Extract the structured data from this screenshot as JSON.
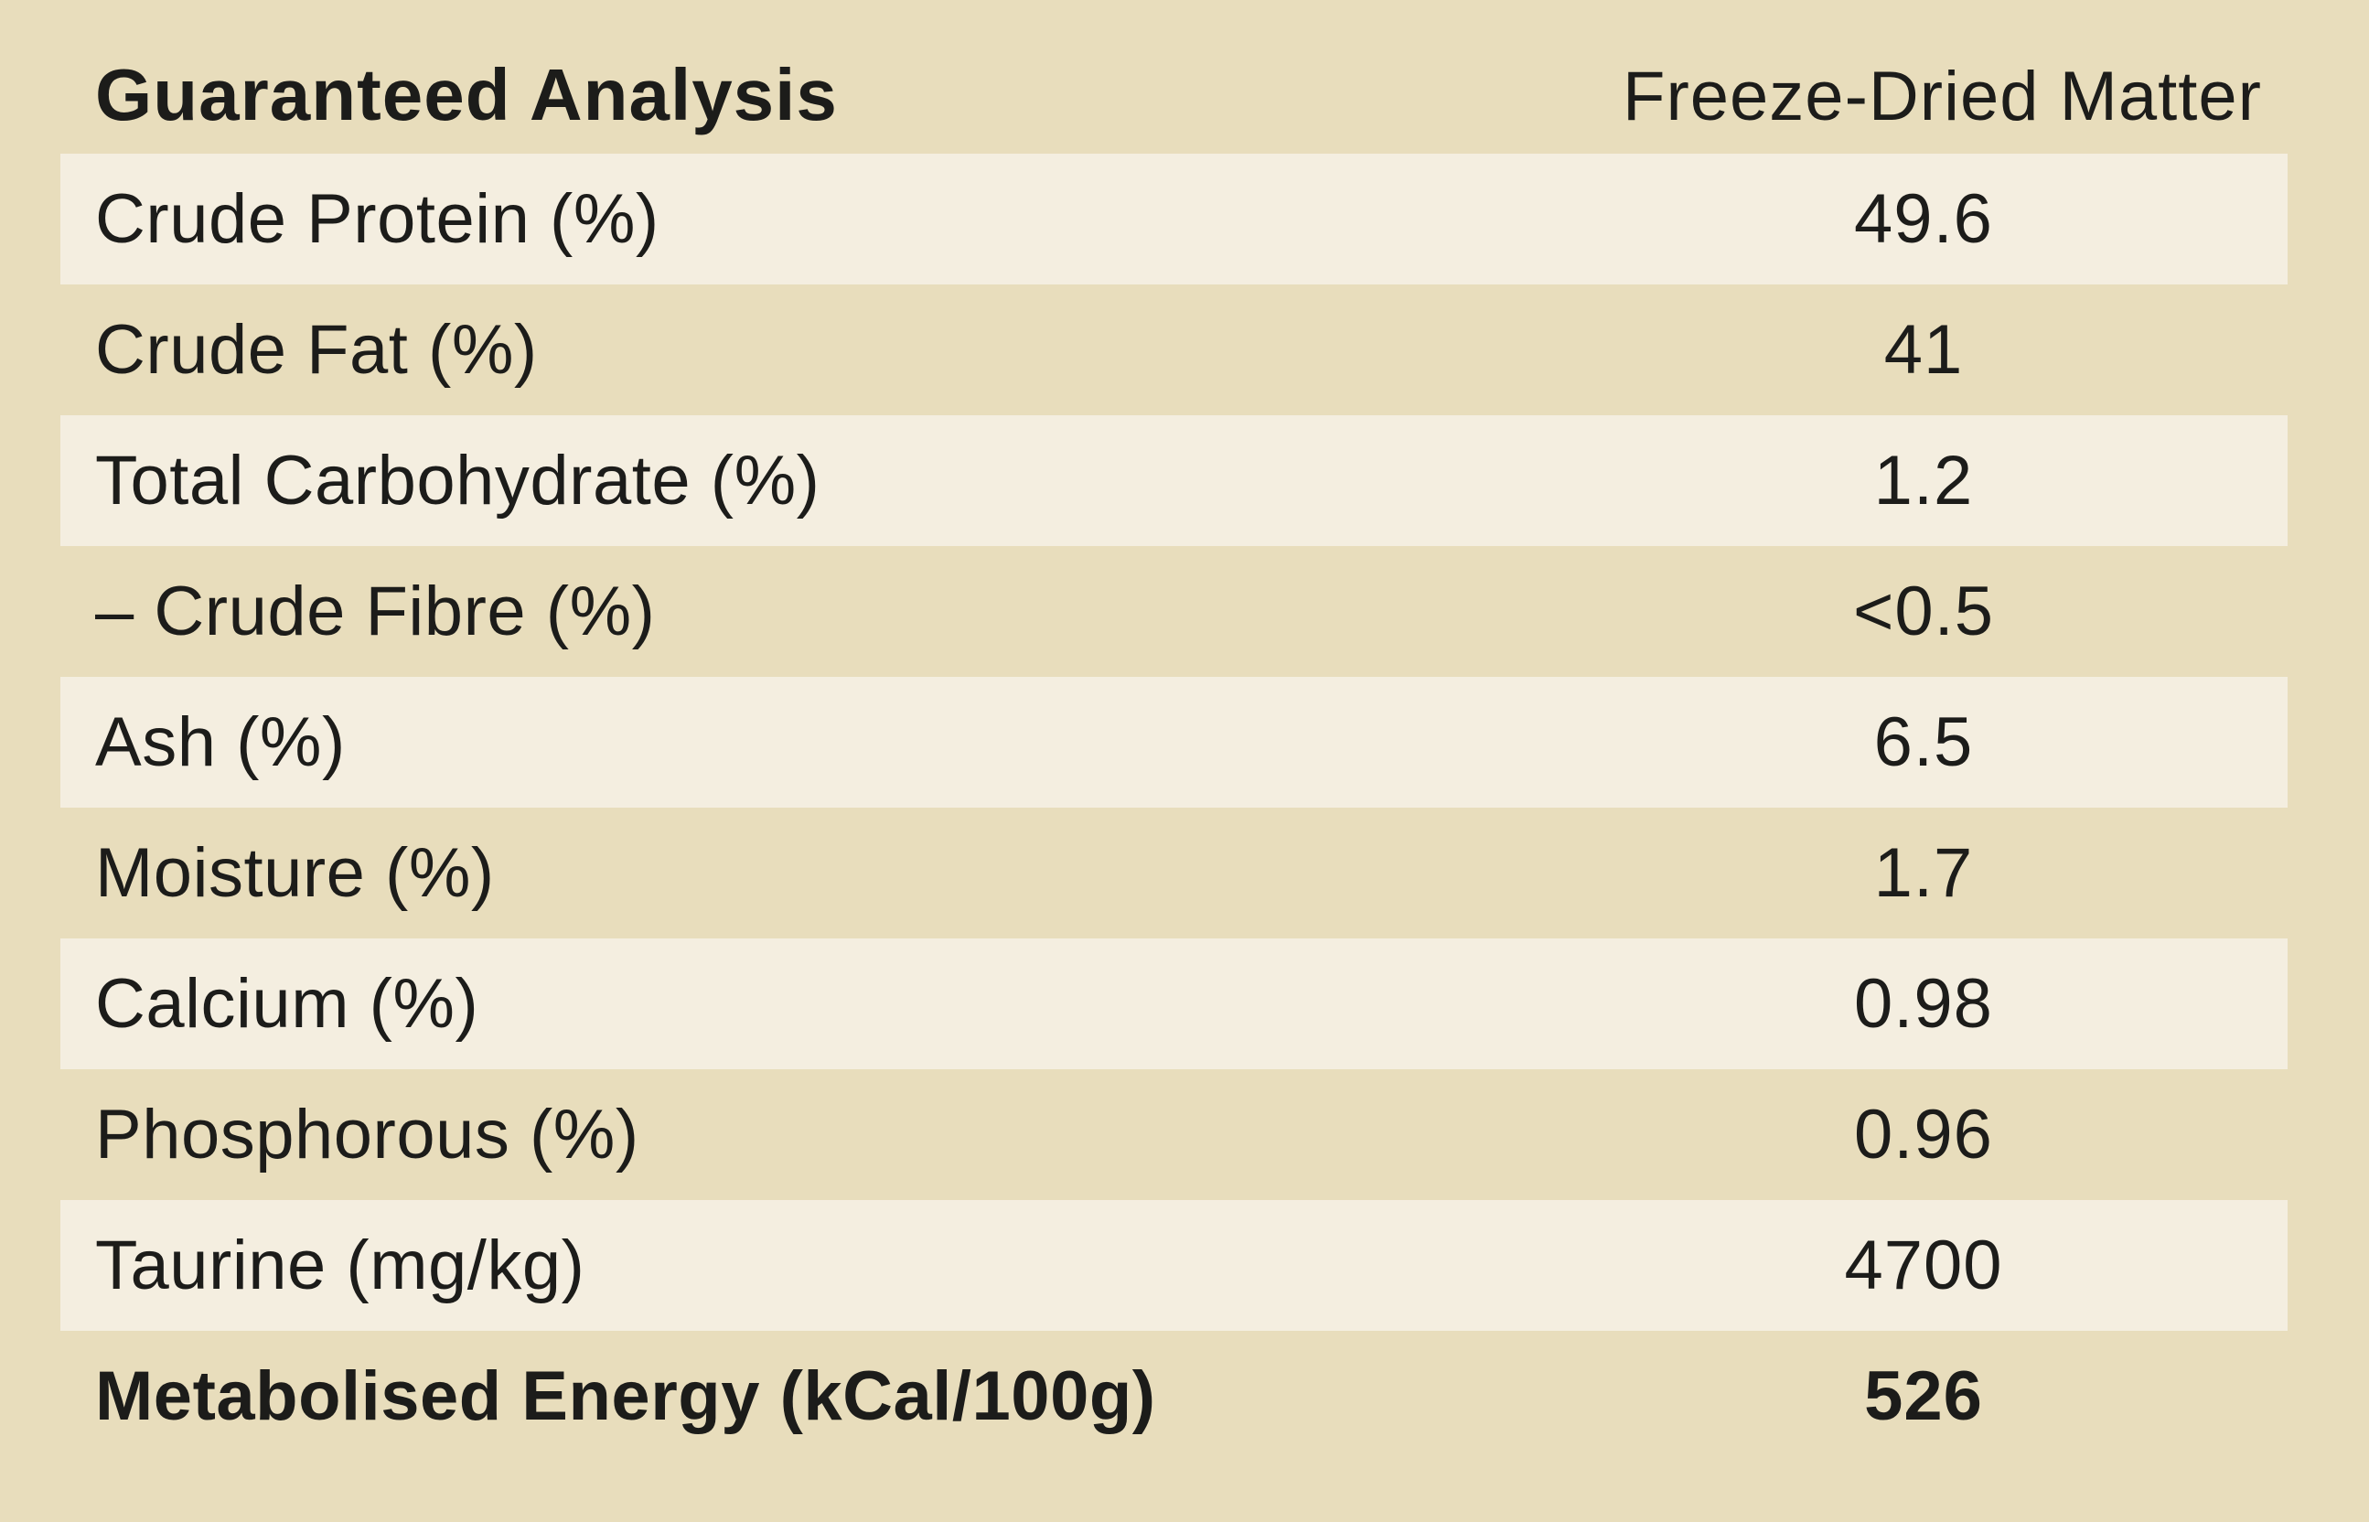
{
  "header": {
    "title": "Guaranteed Analysis",
    "column": "Freeze-Dried Matter"
  },
  "rows": [
    {
      "label": "Crude Protein (%)",
      "value": "49.6"
    },
    {
      "label": "Crude Fat (%)",
      "value": "41"
    },
    {
      "label": "Total Carbohydrate (%)",
      "value": "1.2"
    },
    {
      "label": "– Crude Fibre (%)",
      "value": "<0.5"
    },
    {
      "label": "Ash (%)",
      "value": "6.5"
    },
    {
      "label": "Moisture (%)",
      "value": "1.7"
    },
    {
      "label": "Calcium (%)",
      "value": "0.98"
    },
    {
      "label": "Phosphorous (%)",
      "value": "0.96"
    },
    {
      "label": "Taurine (mg/kg)",
      "value": "4700"
    },
    {
      "label": "Metabolised Energy (kCal/100g)",
      "value": "526"
    }
  ]
}
